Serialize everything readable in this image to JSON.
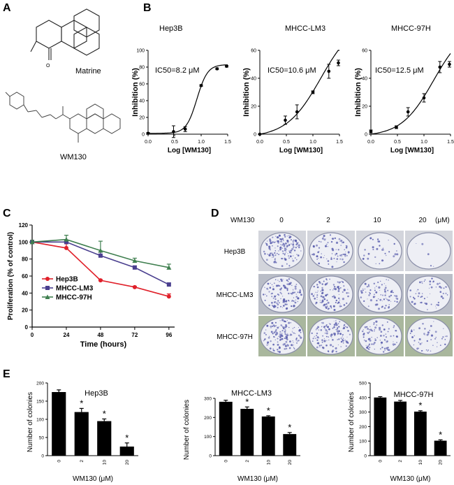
{
  "panels": {
    "A": "A",
    "B": "B",
    "C": "C",
    "D": "D",
    "E": "E"
  },
  "structures": {
    "matrine_label": "Matrine",
    "wm130_label": "WM130"
  },
  "colors": {
    "hep3b": "#e0202a",
    "lm3": "#4a3f8f",
    "h97": "#3f7f4f",
    "bar": "#000000",
    "dish_blue": "#5b5fae"
  },
  "chart_data": [
    {
      "id": "B1",
      "type": "scatter",
      "title": "Hep3B",
      "annotation": "IC50=8.2 μM",
      "xlabel": "Log [WM130]",
      "ylabel": "Inhibition (%)",
      "xlim": [
        0,
        1.5
      ],
      "ylim": [
        0,
        100
      ],
      "xticks": [
        "0.0",
        "0.5",
        "1.0",
        "1.5"
      ],
      "yticks": [
        "0",
        "20",
        "40",
        "60",
        "80",
        "100"
      ],
      "x": [
        0,
        0.48,
        0.7,
        1.0,
        1.3,
        1.48
      ],
      "y": [
        1,
        3,
        6,
        58,
        78,
        81
      ],
      "err": [
        1,
        7,
        3,
        1,
        1,
        1
      ]
    },
    {
      "id": "B2",
      "type": "scatter",
      "title": "MHCC-LM3",
      "annotation": "IC50=10.6 μM",
      "xlabel": "Log [WM130]",
      "ylabel": "Inhibition (%)",
      "xlim": [
        0,
        1.5
      ],
      "ylim": [
        0,
        60
      ],
      "xticks": [
        "0.0",
        "0.5",
        "1.0",
        "1.5"
      ],
      "yticks": [
        "0",
        "20",
        "40",
        "60"
      ],
      "x": [
        0,
        0.48,
        0.7,
        1.0,
        1.3,
        1.48
      ],
      "y": [
        0,
        10,
        16,
        30,
        45,
        51
      ],
      "err": [
        0,
        3,
        5,
        1,
        5,
        2
      ]
    },
    {
      "id": "B3",
      "type": "scatter",
      "title": "MHCC-97H",
      "annotation": "IC50=12.5 μM",
      "xlabel": "Log [WM130]",
      "ylabel": "Inhibition (%)",
      "xlim": [
        0,
        1.5
      ],
      "ylim": [
        0,
        60
      ],
      "xticks": [
        "0.0",
        "0.5",
        "1.0",
        "1.5"
      ],
      "yticks": [
        "0",
        "20",
        "40",
        "60"
      ],
      "x": [
        0,
        0.48,
        0.7,
        1.0,
        1.3,
        1.48
      ],
      "y": [
        2,
        5,
        16,
        26,
        48,
        50
      ],
      "err": [
        1,
        1,
        3,
        3,
        4,
        2
      ]
    },
    {
      "id": "C",
      "type": "line",
      "xlabel": "Time (hours)",
      "ylabel": "Proliferation (% of control)",
      "xlim": [
        0,
        100
      ],
      "ylim": [
        0,
        120
      ],
      "xticks": [
        "0",
        "24",
        "48",
        "72",
        "96"
      ],
      "yticks": [
        "0",
        "20",
        "40",
        "60",
        "80",
        "100",
        "120"
      ],
      "x": [
        0,
        24,
        48,
        72,
        96
      ],
      "legend_position": "center-left",
      "series": [
        {
          "name": "Hep3B",
          "values": [
            100,
            93,
            55,
            47,
            36
          ],
          "err": [
            2,
            5,
            1,
            1,
            3
          ],
          "marker": "circle"
        },
        {
          "name": "MHCC-LM3",
          "values": [
            100,
            100,
            84,
            70,
            50
          ],
          "err": [
            2,
            2,
            4,
            2,
            2
          ],
          "marker": "square"
        },
        {
          "name": "MHCC-97H",
          "values": [
            100,
            103,
            90,
            78,
            70
          ],
          "err": [
            2,
            5,
            11,
            3,
            4
          ],
          "marker": "triangle"
        }
      ]
    },
    {
      "id": "E1",
      "type": "bar",
      "title": "Hep3B",
      "xlabel": "WM130 (μM)",
      "ylabel": "Number of colonies",
      "categories": [
        "0",
        "2",
        "10",
        "20"
      ],
      "values": [
        175,
        120,
        95,
        25
      ],
      "err": [
        6,
        10,
        6,
        10
      ],
      "sig": [
        "",
        "*",
        "*",
        "*"
      ],
      "ylim": [
        0,
        200
      ],
      "yticks": [
        "0",
        "50",
        "100",
        "150",
        "200"
      ]
    },
    {
      "id": "E2",
      "type": "bar",
      "title": "MHCC-LM3",
      "xlabel": "WM130 (μM)",
      "ylabel": "Number of colonies",
      "categories": [
        "0",
        "2",
        "10",
        "20"
      ],
      "values": [
        282,
        245,
        205,
        113
      ],
      "err": [
        8,
        10,
        4,
        8
      ],
      "sig": [
        "",
        "*",
        "*",
        "*"
      ],
      "ylim": [
        0,
        300
      ],
      "yticks": [
        "0",
        "100",
        "200",
        "300"
      ]
    },
    {
      "id": "E3",
      "type": "bar",
      "title": "MHCC-97H",
      "xlabel": "WM130 (μM)",
      "ylabel": "Number of colonies",
      "categories": [
        "0",
        "2",
        "10",
        "20"
      ],
      "values": [
        400,
        372,
        303,
        103
      ],
      "err": [
        6,
        8,
        6,
        6
      ],
      "sig": [
        "",
        "",
        "*",
        "*"
      ],
      "ylim": [
        0,
        500
      ],
      "yticks": [
        "0",
        "100",
        "200",
        "300",
        "400",
        "500"
      ]
    }
  ],
  "colony_panel": {
    "drug_label": "WM130",
    "concentrations": [
      "0",
      "2",
      "10",
      "20"
    ],
    "unit": "(μM)",
    "cell_lines": [
      "Hep3B",
      "MHCC-LM3",
      "MHCC-97H"
    ],
    "density": [
      [
        0.9,
        0.5,
        0.2,
        0.03
      ],
      [
        0.8,
        0.65,
        0.5,
        0.35
      ],
      [
        0.9,
        0.8,
        0.55,
        0.3
      ]
    ]
  }
}
